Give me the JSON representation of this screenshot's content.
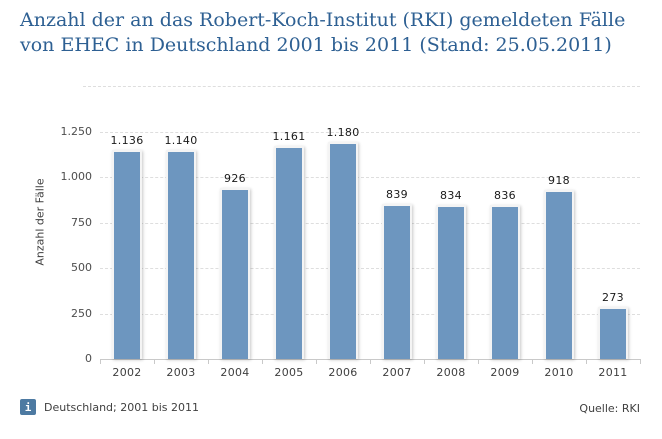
{
  "header": {
    "title_line1": "Anzahl der an das Robert-Koch-Institut (RKI) gemeldeten Fälle",
    "title_line2": "von EHEC in Deutschland 2001 bis 2011 (Stand: 25.05.2011)"
  },
  "chart_data": {
    "type": "bar",
    "title": "Anzahl der an das Robert-Koch-Institut (RKI) gemeldeten Fälle von EHEC in Deutschland 2001 bis 2011 (Stand: 25.05.2011)",
    "categories": [
      "2002",
      "2003",
      "2004",
      "2005",
      "2006",
      "2007",
      "2008",
      "2009",
      "2010",
      "2011"
    ],
    "values": [
      1136,
      1140,
      926,
      1161,
      1180,
      839,
      834,
      836,
      918,
      273
    ],
    "value_labels": [
      "1.136",
      "1.140",
      "926",
      "1.161",
      "1.180",
      "839",
      "834",
      "836",
      "918",
      "273"
    ],
    "xlabel": "",
    "ylabel": "Anzahl der Fälle",
    "ylim": [
      0,
      1500
    ],
    "yticks": [
      {
        "value": 0,
        "label": "0"
      },
      {
        "value": 250,
        "label": "250"
      },
      {
        "value": 500,
        "label": "500"
      },
      {
        "value": 750,
        "label": "750"
      },
      {
        "value": 1000,
        "label": "1.000"
      },
      {
        "value": 1250,
        "label": "1.250"
      },
      {
        "value": 1500,
        "label": ""
      }
    ],
    "grid": "horizontal-dashed",
    "legend": "none",
    "bar_color": "#6d96bf"
  },
  "footer": {
    "info_icon": "i",
    "scope_note": "Deutschland; 2001 bis 2011",
    "source": "Quelle: RKI"
  },
  "colors": {
    "background": "#ffffff",
    "title_text": "#2e6093",
    "bar": "#6d96bf",
    "axis_text": "#404040",
    "tick_text": "#4d4d4d",
    "value_label_text": "#1a1a1a",
    "grid_line": "#dedede",
    "axis_line": "#c9c9c9",
    "info_badge_bg": "#4d7aa2",
    "info_badge_text": "#ffffff"
  }
}
